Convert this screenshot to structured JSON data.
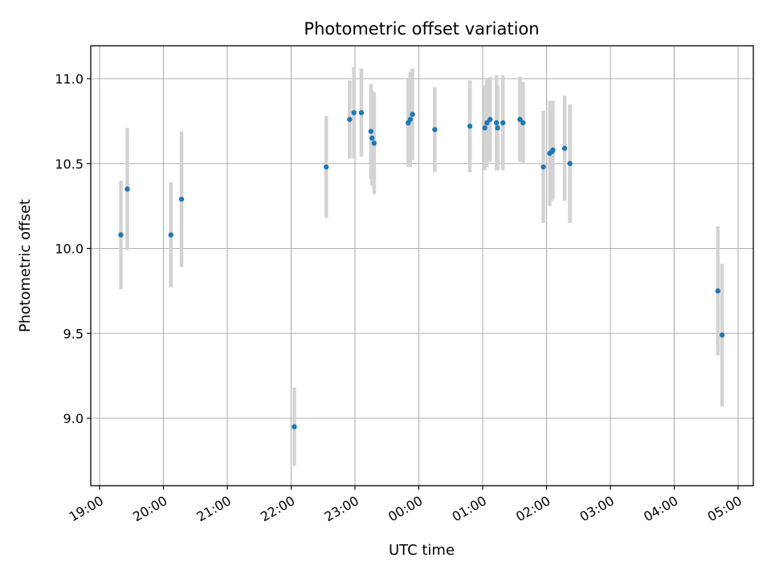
{
  "chart_data": {
    "type": "scatter",
    "title": "Photometric offset variation",
    "xlabel": "UTC time",
    "ylabel": "Photometric offset",
    "xlim": [
      "19:00",
      "05:00"
    ],
    "ylim": [
      8.6,
      11.2
    ],
    "grid": true,
    "x_ticks": [
      "19:00",
      "20:00",
      "21:00",
      "22:00",
      "23:00",
      "00:00",
      "01:00",
      "02:00",
      "03:00",
      "04:00",
      "05:00"
    ],
    "y_ticks": [
      "9.0",
      "9.5",
      "10.0",
      "10.5",
      "11.0"
    ],
    "colors": {
      "points": "#1f77b4",
      "error_bars": "#d3d3d3",
      "grid": "#b0b0b0"
    },
    "series": [
      {
        "points": [
          {
            "x": "19:20",
            "y": 10.08,
            "err": 0.32
          },
          {
            "x": "19:26",
            "y": 10.35,
            "err": 0.36
          },
          {
            "x": "20:07",
            "y": 10.08,
            "err": 0.31
          },
          {
            "x": "20:17",
            "y": 10.29,
            "err": 0.4
          },
          {
            "x": "22:03",
            "y": 8.95,
            "err": 0.23
          },
          {
            "x": "22:33",
            "y": 10.48,
            "err": 0.3
          },
          {
            "x": "22:55",
            "y": 10.76,
            "err": 0.23
          },
          {
            "x": "22:59",
            "y": 10.8,
            "err": 0.27
          },
          {
            "x": "23:06",
            "y": 10.8,
            "err": 0.26
          },
          {
            "x": "23:15",
            "y": 10.69,
            "err": 0.28
          },
          {
            "x": "23:16",
            "y": 10.65,
            "err": 0.28
          },
          {
            "x": "23:18",
            "y": 10.62,
            "err": 0.3
          },
          {
            "x": "23:50",
            "y": 10.74,
            "err": 0.26
          },
          {
            "x": "23:52",
            "y": 10.76,
            "err": 0.28
          },
          {
            "x": "23:54",
            "y": 10.79,
            "err": 0.27
          },
          {
            "x": "00:15",
            "y": 10.7,
            "err": 0.25
          },
          {
            "x": "00:48",
            "y": 10.72,
            "err": 0.27
          },
          {
            "x": "01:02",
            "y": 10.71,
            "err": 0.25
          },
          {
            "x": "01:04",
            "y": 10.74,
            "err": 0.26
          },
          {
            "x": "01:07",
            "y": 10.76,
            "err": 0.25
          },
          {
            "x": "01:13",
            "y": 10.74,
            "err": 0.28
          },
          {
            "x": "01:14",
            "y": 10.71,
            "err": 0.25
          },
          {
            "x": "01:19",
            "y": 10.74,
            "err": 0.28
          },
          {
            "x": "01:35",
            "y": 10.76,
            "err": 0.25
          },
          {
            "x": "01:38",
            "y": 10.74,
            "err": 0.24
          },
          {
            "x": "01:57",
            "y": 10.48,
            "err": 0.33
          },
          {
            "x": "02:03",
            "y": 10.56,
            "err": 0.31
          },
          {
            "x": "02:05",
            "y": 10.57,
            "err": 0.29
          },
          {
            "x": "02:06",
            "y": 10.58,
            "err": 0.29
          },
          {
            "x": "02:17",
            "y": 10.59,
            "err": 0.31
          },
          {
            "x": "02:22",
            "y": 10.5,
            "err": 0.35
          },
          {
            "x": "04:41",
            "y": 9.75,
            "err": 0.38
          },
          {
            "x": "04:45",
            "y": 9.49,
            "err": 0.42
          }
        ]
      }
    ]
  }
}
